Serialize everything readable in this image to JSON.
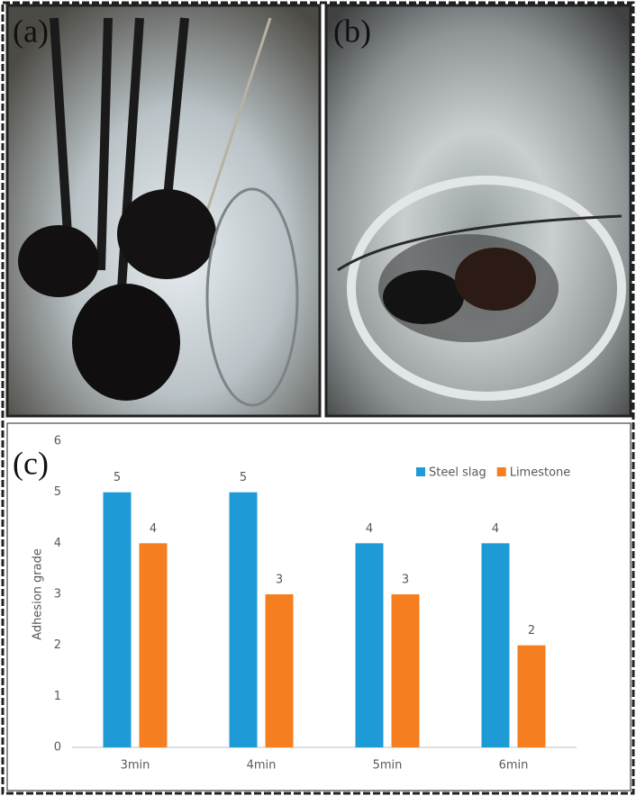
{
  "panels": [
    "(a)",
    "(b)",
    "(c)"
  ],
  "chart_data": {
    "type": "bar",
    "y_label": "Adhesion grade",
    "categories": [
      "3min",
      "4min",
      "5min",
      "6min"
    ],
    "series": [
      {
        "name": "Steel slag",
        "color": "#1e9bd7",
        "values": [
          5,
          5,
          4,
          4
        ]
      },
      {
        "name": "Limestone",
        "color": "#f57e20",
        "values": [
          4,
          3,
          3,
          2
        ]
      }
    ],
    "ylim": [
      0,
      6
    ],
    "yticks": [
      0,
      1,
      2,
      3,
      4,
      5,
      6
    ],
    "grid": false,
    "legend": "top-right"
  }
}
